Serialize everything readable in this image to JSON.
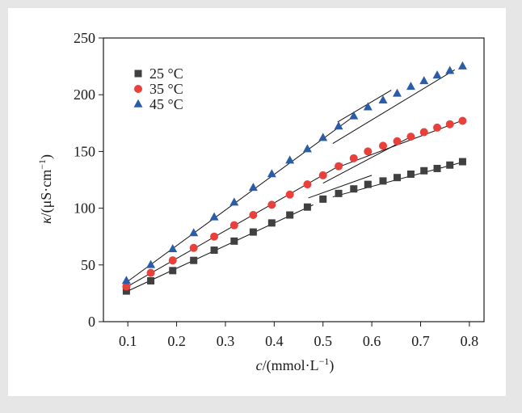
{
  "chart_data": {
    "type": "scatter",
    "title": "",
    "xlabel_var": "c",
    "xlabel_unit": "/(mmol·L",
    "xlabel_sup": "−1",
    "xlabel_close": ")",
    "ylabel_var": "κ",
    "ylabel_unit": "/(μS·cm",
    "ylabel_sup": "−1",
    "ylabel_close": ")",
    "xlim": [
      0.05,
      0.83
    ],
    "ylim": [
      0,
      250
    ],
    "xticks": [
      0.1,
      0.2,
      0.3,
      0.4,
      0.5,
      0.6,
      0.7,
      0.8
    ],
    "xtick_labels": [
      "0.1",
      "0.2",
      "0.3",
      "0.4",
      "0.5",
      "0.6",
      "0.7",
      "0.8"
    ],
    "yticks": [
      0,
      50,
      100,
      150,
      200,
      250
    ],
    "ytick_labels": [
      "0",
      "50",
      "100",
      "150",
      "200",
      "250"
    ],
    "grid": false,
    "legend_position": "top-left",
    "series": [
      {
        "name": "25 °C",
        "marker": "square",
        "color": "#404040",
        "x": [
          0.097,
          0.147,
          0.192,
          0.235,
          0.277,
          0.318,
          0.357,
          0.395,
          0.432,
          0.468,
          0.5,
          0.532,
          0.563,
          0.592,
          0.623,
          0.652,
          0.68,
          0.707,
          0.734,
          0.76,
          0.786
        ],
        "y": [
          27,
          36,
          45,
          54,
          63,
          71,
          79,
          87,
          94,
          101,
          108,
          113,
          117,
          121,
          124,
          127,
          130,
          133,
          135,
          138,
          141
        ],
        "fit_lines": [
          {
            "x": [
              0.095,
              0.48
            ],
            "y": [
              26,
              103
            ]
          },
          {
            "x": [
              0.47,
              0.6
            ],
            "y": [
              109,
              129
            ]
          },
          {
            "x": [
              0.52,
              0.79
            ],
            "y": [
              110,
              141
            ]
          }
        ]
      },
      {
        "name": "35 °C",
        "marker": "circle",
        "color": "#e8403a",
        "x": [
          0.097,
          0.147,
          0.192,
          0.235,
          0.277,
          0.318,
          0.357,
          0.395,
          0.432,
          0.468,
          0.5,
          0.532,
          0.563,
          0.592,
          0.623,
          0.652,
          0.68,
          0.707,
          0.734,
          0.76,
          0.786
        ],
        "y": [
          31,
          43,
          54,
          65,
          75,
          85,
          94,
          103,
          112,
          121,
          129,
          137,
          144,
          150,
          155,
          159,
          163,
          167,
          171,
          174,
          177
        ],
        "fit_lines": [
          {
            "x": [
              0.095,
              0.54
            ],
            "y": [
              30,
              139
            ]
          },
          {
            "x": [
              0.5,
              0.68
            ],
            "y": [
              122,
              163
            ]
          },
          {
            "x": [
              0.53,
              0.79
            ],
            "y": [
              136,
              178
            ]
          }
        ]
      },
      {
        "name": "45 °C",
        "marker": "triangle",
        "color": "#2a5ca8",
        "x": [
          0.097,
          0.147,
          0.192,
          0.235,
          0.277,
          0.318,
          0.357,
          0.395,
          0.432,
          0.468,
          0.5,
          0.532,
          0.563,
          0.592,
          0.623,
          0.652,
          0.68,
          0.707,
          0.734,
          0.76,
          0.786
        ],
        "y": [
          36,
          50,
          64,
          78,
          92,
          105,
          118,
          130,
          142,
          152,
          162,
          172,
          181,
          189,
          195,
          201,
          207,
          212,
          217,
          221,
          225
        ],
        "fit_lines": [
          {
            "x": [
              0.095,
              0.56
            ],
            "y": [
              34,
              180
            ]
          },
          {
            "x": [
              0.52,
              0.77
            ],
            "y": [
              157,
              222
            ]
          },
          {
            "x": [
              0.53,
              0.64
            ],
            "y": [
              176,
              204
            ]
          }
        ]
      }
    ]
  }
}
